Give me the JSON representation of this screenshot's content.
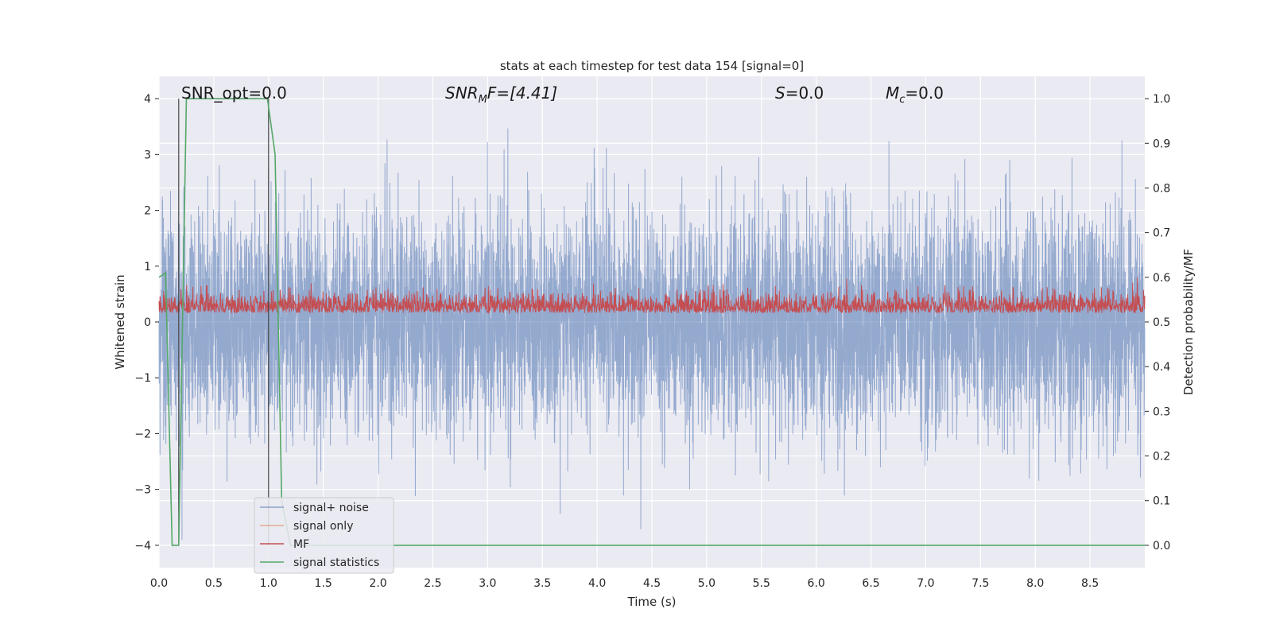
{
  "chart_data": {
    "type": "line",
    "title": "stats at each timestep for test data 154 [signal=0]",
    "xlabel": "Time (s)",
    "ylabel": "Whitened strain",
    "y2label": "Detection probability/MF",
    "xlim": [
      0.0,
      9.0
    ],
    "ylim": [
      -4.4,
      4.4
    ],
    "y2lim": [
      -0.05,
      1.05
    ],
    "x_ticks": [
      0.0,
      0.5,
      1.0,
      1.5,
      2.0,
      2.5,
      3.0,
      3.5,
      4.0,
      4.5,
      5.0,
      5.5,
      6.0,
      6.5,
      7.0,
      7.5,
      8.0,
      8.5
    ],
    "x_tick_labels": [
      "0.0",
      "0.5",
      "1.0",
      "1.5",
      "2.0",
      "2.5",
      "3.0",
      "3.5",
      "4.0",
      "4.5",
      "5.0",
      "5.5",
      "6.0",
      "6.5",
      "7.0",
      "7.5",
      "8.0",
      "8.5"
    ],
    "y_ticks": [
      -4,
      -3,
      -2,
      -1,
      0,
      1,
      2,
      3,
      4
    ],
    "y_tick_labels": [
      "−4",
      "−3",
      "−2",
      "−1",
      "0",
      "1",
      "2",
      "3",
      "4"
    ],
    "y2_ticks": [
      0.0,
      0.1,
      0.2,
      0.3,
      0.4,
      0.5,
      0.6,
      0.7,
      0.8,
      0.9,
      1.0
    ],
    "y2_tick_labels": [
      "0.0",
      "0.1",
      "0.2",
      "0.3",
      "0.4",
      "0.5",
      "0.6",
      "0.7",
      "0.8",
      "0.9",
      "1.0"
    ],
    "grid": true,
    "legend_position": "lower-left",
    "annotations": {
      "snr_opt": "SNR_opt=0.0",
      "snr_mf_base": "SNR",
      "snr_mf_sub": "M",
      "snr_mf_rest": "F=[4.41]",
      "s_var": "S",
      "s_rest": "=0.0",
      "mc_var": "M",
      "mc_sub": "c",
      "mc_rest": "=0.0"
    },
    "vertical_lines_x": [
      0.18,
      1.0
    ],
    "series": [
      {
        "name": "signal+ noise",
        "color": "#4c72b0",
        "kind": "noise",
        "sigma": 1.0,
        "peak_envelope": 3.9
      },
      {
        "name": "signal only",
        "color": "#dd8452",
        "values": []
      },
      {
        "name": "MF",
        "color": "#c44e52",
        "axis": "right",
        "kind": "mf",
        "baseline": 0.52,
        "range": [
          0.5,
          0.6
        ]
      },
      {
        "name": "signal statistics",
        "color": "#55a868",
        "axis": "right",
        "x": [
          0.0,
          0.06,
          0.12,
          0.18,
          0.25,
          0.62,
          0.99,
          1.06,
          1.12,
          1.2,
          9.0
        ],
        "y": [
          0.6,
          0.61,
          0.0,
          0.0,
          1.0,
          1.0,
          1.0,
          0.875,
          0.1,
          0.0,
          0.0
        ]
      }
    ]
  }
}
